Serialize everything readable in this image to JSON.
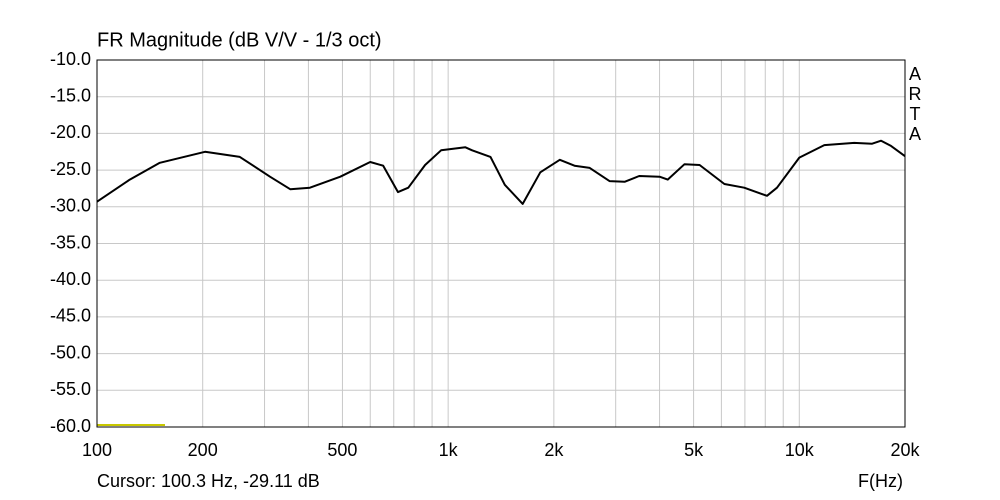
{
  "chart_data": {
    "type": "line",
    "title": "FR Magnitude (dB V/V - 1/3 oct)",
    "brand": "ARTA",
    "cursor": "Cursor: 100.3 Hz, -29.11 dB",
    "x_label": "F(Hz)",
    "xscale": "log",
    "grid": true,
    "xlim": [
      100,
      20000
    ],
    "ylim": [
      -60,
      -10
    ],
    "xticks": [
      100,
      200,
      500,
      {
        "value": 1000,
        "label": "1k"
      },
      {
        "value": 2000,
        "label": "2k"
      },
      {
        "value": 5000,
        "label": "5k"
      },
      {
        "value": 10000,
        "label": "10k"
      },
      {
        "value": 20000,
        "label": "20k"
      }
    ],
    "xgrid_minor": [
      300,
      400,
      600,
      700,
      800,
      900,
      3000,
      4000,
      6000,
      7000,
      8000,
      9000
    ],
    "yticks": [
      {
        "value": -10,
        "label": "-10.0"
      },
      {
        "value": -15,
        "label": "-15.0"
      },
      {
        "value": -20,
        "label": "-20.0"
      },
      {
        "value": -25,
        "label": "-25.0"
      },
      {
        "value": -30,
        "label": "-30.0"
      },
      {
        "value": -35,
        "label": "-35.0"
      },
      {
        "value": -40,
        "label": "-40.0"
      },
      {
        "value": -45,
        "label": "-45.0"
      },
      {
        "value": -50,
        "label": "-50.0"
      },
      {
        "value": -55,
        "label": "-55.0"
      },
      {
        "value": -60,
        "label": "-60.0"
      }
    ],
    "series": [
      {
        "color": "#000000",
        "x": [
          100,
          124,
          151,
          203,
          255,
          311,
          355,
          404,
          493,
          600,
          653,
          720,
          770,
          860,
          955,
          1120,
          1170,
          1320,
          1450,
          1630,
          1830,
          2080,
          2290,
          2530,
          2880,
          3180,
          3500,
          4000,
          4220,
          4710,
          5200,
          6120,
          6970,
          8090,
          8640,
          10000,
          11780,
          14330,
          16120,
          17100,
          18250,
          20000
        ],
        "values": [
          -29.3,
          -26.3,
          -24.0,
          -22.5,
          -23.2,
          -25.9,
          -27.6,
          -27.4,
          -25.9,
          -23.9,
          -24.4,
          -28.0,
          -27.4,
          -24.3,
          -22.3,
          -21.9,
          -22.3,
          -23.2,
          -27.0,
          -29.6,
          -25.3,
          -23.6,
          -24.4,
          -24.7,
          -26.5,
          -26.6,
          -25.8,
          -25.9,
          -26.3,
          -24.2,
          -24.3,
          -26.9,
          -27.4,
          -28.5,
          -27.4,
          -23.3,
          -21.6,
          -21.3,
          -21.4,
          -21.0,
          -21.7,
          -23.1
        ]
      }
    ]
  }
}
